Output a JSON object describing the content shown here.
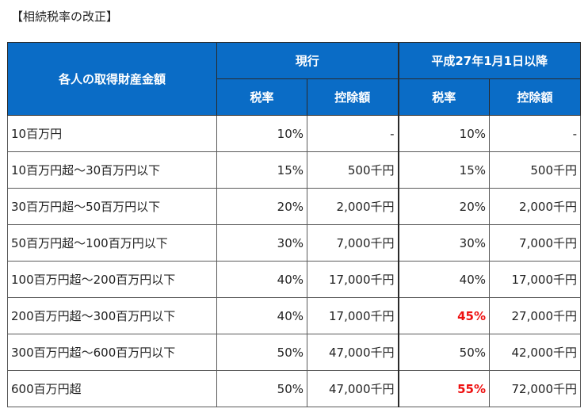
{
  "caption": "【相続税率の改正】",
  "table": {
    "header": {
      "row_label": "各人の取得財産金額",
      "group_current": "現行",
      "group_new": "平成27年1月1日以降",
      "col_rate": "税率",
      "col_deduction": "控除額"
    },
    "rows": [
      {
        "label": "10百万円",
        "cur_rate": "10%",
        "cur_ded": "-",
        "new_rate": "10%",
        "new_ded": "-",
        "new_rate_highlight": false
      },
      {
        "label": "10百万円超～30百万円以下",
        "cur_rate": "15%",
        "cur_ded": "500千円",
        "new_rate": "15%",
        "new_ded": "500千円",
        "new_rate_highlight": false
      },
      {
        "label": "30百万円超～50百万円以下",
        "cur_rate": "20%",
        "cur_ded": "2,000千円",
        "new_rate": "20%",
        "new_ded": "2,000千円",
        "new_rate_highlight": false
      },
      {
        "label": "50百万円超～100百万円以下",
        "cur_rate": "30%",
        "cur_ded": "7,000千円",
        "new_rate": "30%",
        "new_ded": "7,000千円",
        "new_rate_highlight": false
      },
      {
        "label": "100百万円超～200百万円以下",
        "cur_rate": "40%",
        "cur_ded": "17,000千円",
        "new_rate": "40%",
        "new_ded": "17,000千円",
        "new_rate_highlight": false
      },
      {
        "label": "200百万円超～300百万円以下",
        "cur_rate": "40%",
        "cur_ded": "17,000千円",
        "new_rate": "45%",
        "new_ded": "27,000千円",
        "new_rate_highlight": true
      },
      {
        "label": "300百万円超～600百万円以下",
        "cur_rate": "50%",
        "cur_ded": "47,000千円",
        "new_rate": "50%",
        "new_ded": "42,000千円",
        "new_rate_highlight": false
      },
      {
        "label": "600百万円超",
        "cur_rate": "50%",
        "cur_ded": "47,000千円",
        "new_rate": "55%",
        "new_ded": "72,000千円",
        "new_rate_highlight": true
      }
    ]
  },
  "colors": {
    "header_bg": "#0a6cc6",
    "header_text": "#ffffff",
    "highlight": "#ee1111",
    "border": "#5a5a5a"
  }
}
